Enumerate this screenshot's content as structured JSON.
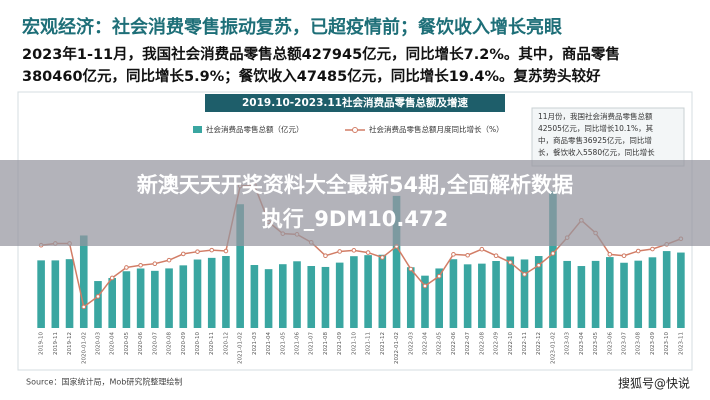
{
  "header": {
    "title": "宏观经济：社会消费零售振动复苏，已超疫情前；餐饮收入增长亮眼",
    "summary": [
      "2023年1-11月，我国社会消费品零售总额427945亿元，同比增长7.2%。其中，商品零售",
      "380460亿元，同比增长5.9%；餐饮收入47485亿元，同比增长19.4%。复苏势头较好"
    ]
  },
  "overlay": [
    "新澳天天开奖资料大全最新54期,全面解析数据",
    "执行_9DM10.472"
  ],
  "source": "Source：国家统计局，Mob研究院整理绘制",
  "watermark": "搜狐号@快说",
  "chart_data": {
    "type": "bar-line",
    "title": "2019.10-2023.11社会消费品零售总额及增速",
    "annotations": [
      "11月份，我国社会消费品零售总额",
      "42505亿元，同比增长10.1%，其",
      "中，商品零售36925亿元，同比增",
      "长，餐饮收入5580亿元，同比增长"
    ],
    "categories": [
      "2019-10",
      "2019-11",
      "2019-12",
      "2020-01-02",
      "2020-03",
      "2020-04",
      "2020-05",
      "2020-06",
      "2020-07",
      "2020-08",
      "2020-09",
      "2020-10",
      "2020-11",
      "2020-12",
      "2021-01-02",
      "2021-03",
      "2021-04",
      "2021-05",
      "2021-06",
      "2021-07",
      "2021-08",
      "2021-09",
      "2021-10",
      "2021-11",
      "2021-12",
      "2022-01-02",
      "2022-03",
      "2022-04",
      "2022-05",
      "2022-06",
      "2022-07",
      "2022-08",
      "2022-09",
      "2022-10",
      "2022-11",
      "2022-12",
      "2023-01-02",
      "2023-03",
      "2023-04",
      "2023-05",
      "2023-06",
      "2023-07",
      "2023-08",
      "2023-09",
      "2023-10",
      "2023-11"
    ],
    "series": [
      {
        "name": "社会消费品零售总额（亿元）",
        "color": "#3aa6a1",
        "values": [
          38104,
          38094,
          38777,
          52130,
          26450,
          28178,
          31973,
          33526,
          32203,
          33571,
          35295,
          38576,
          39514,
          40566,
          69737,
          35484,
          33153,
          35945,
          37586,
          34925,
          34395,
          36833,
          40454,
          41043,
          41269,
          74426,
          34233,
          29483,
          33547,
          38742,
          35870,
          36258,
          37745,
          40271,
          38615,
          40542,
          77067,
          37780,
          34910,
          37803,
          39951,
          36761,
          37933,
          39826,
          43333,
          42505
        ]
      },
      {
        "name": "社会消费品零售总额月度同比增长（%）",
        "color": "#d27d66",
        "axis": "y2",
        "values": [
          7.2,
          8.0,
          8.0,
          -20.5,
          -15.8,
          -7.5,
          -2.8,
          -1.8,
          -1.1,
          0.5,
          3.3,
          4.3,
          5.0,
          4.6,
          33.8,
          34.2,
          17.7,
          12.4,
          12.1,
          8.5,
          2.5,
          4.4,
          4.9,
          3.9,
          1.7,
          6.7,
          -3.5,
          -11.1,
          -6.7,
          3.1,
          2.7,
          5.4,
          2.5,
          -0.5,
          -5.9,
          -1.8,
          3.5,
          10.6,
          18.4,
          12.7,
          3.1,
          2.5,
          4.6,
          5.5,
          7.6,
          10.1
        ]
      }
    ],
    "ylim": [
      0,
      80000
    ],
    "y2lim": [
      -30,
      50
    ]
  }
}
